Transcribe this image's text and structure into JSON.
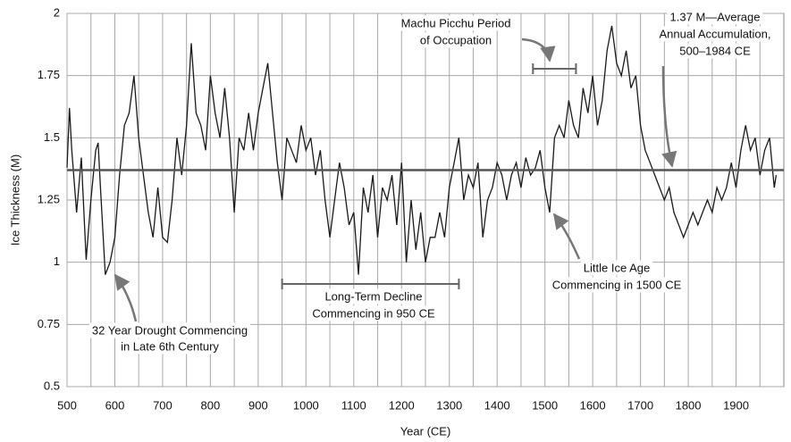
{
  "chart_data": {
    "type": "line",
    "x_label": "Year (CE)",
    "y_label": "Ice Thickness (M)",
    "xlim": [
      500,
      2000
    ],
    "ylim": [
      0.5,
      2
    ],
    "xticks": [
      500,
      600,
      700,
      800,
      900,
      1000,
      1100,
      1200,
      1300,
      1400,
      1500,
      1600,
      1700,
      1800,
      1900
    ],
    "xminorticks": [
      550,
      650,
      750,
      850,
      950,
      1050,
      1150,
      1250,
      1350,
      1450,
      1550,
      1650,
      1750,
      1850,
      1950
    ],
    "yticks": [
      0.5,
      0.75,
      1,
      1.25,
      1.5,
      1.75,
      2
    ],
    "grid": true,
    "reference_line": 1.37,
    "series": [
      {
        "color": "#1a1a1a",
        "x": [
          500,
          505,
          510,
          520,
          530,
          540,
          550,
          560,
          565,
          570,
          580,
          590,
          600,
          610,
          620,
          630,
          640,
          650,
          660,
          670,
          680,
          690,
          700,
          710,
          720,
          730,
          740,
          750,
          760,
          770,
          780,
          790,
          800,
          810,
          820,
          830,
          840,
          850,
          860,
          870,
          880,
          890,
          900,
          910,
          920,
          930,
          940,
          950,
          960,
          970,
          980,
          990,
          1000,
          1010,
          1020,
          1030,
          1040,
          1050,
          1060,
          1070,
          1080,
          1090,
          1100,
          1110,
          1120,
          1130,
          1140,
          1150,
          1160,
          1170,
          1180,
          1190,
          1200,
          1210,
          1220,
          1230,
          1240,
          1250,
          1260,
          1270,
          1280,
          1290,
          1300,
          1310,
          1320,
          1330,
          1340,
          1350,
          1360,
          1370,
          1380,
          1390,
          1400,
          1410,
          1420,
          1430,
          1440,
          1450,
          1460,
          1470,
          1480,
          1490,
          1500,
          1510,
          1520,
          1530,
          1540,
          1550,
          1560,
          1570,
          1580,
          1590,
          1600,
          1610,
          1620,
          1630,
          1640,
          1650,
          1660,
          1670,
          1680,
          1690,
          1700,
          1710,
          1720,
          1730,
          1740,
          1750,
          1760,
          1770,
          1780,
          1790,
          1800,
          1810,
          1820,
          1830,
          1840,
          1850,
          1860,
          1870,
          1880,
          1890,
          1900,
          1910,
          1920,
          1930,
          1940,
          1950,
          1960,
          1970,
          1980,
          1984
        ],
        "values": [
          1.38,
          1.62,
          1.45,
          1.2,
          1.42,
          1.01,
          1.25,
          1.45,
          1.48,
          1.3,
          0.95,
          1.0,
          1.1,
          1.35,
          1.55,
          1.6,
          1.75,
          1.5,
          1.35,
          1.2,
          1.1,
          1.3,
          1.1,
          1.08,
          1.25,
          1.5,
          1.35,
          1.55,
          1.88,
          1.6,
          1.55,
          1.45,
          1.75,
          1.6,
          1.5,
          1.7,
          1.5,
          1.2,
          1.5,
          1.45,
          1.6,
          1.45,
          1.6,
          1.7,
          1.8,
          1.6,
          1.4,
          1.25,
          1.5,
          1.45,
          1.4,
          1.55,
          1.45,
          1.5,
          1.35,
          1.45,
          1.25,
          1.1,
          1.25,
          1.4,
          1.3,
          1.15,
          1.2,
          0.95,
          1.3,
          1.2,
          1.35,
          1.1,
          1.3,
          1.25,
          1.35,
          1.15,
          1.4,
          1.0,
          1.25,
          1.05,
          1.2,
          1.0,
          1.1,
          1.1,
          1.2,
          1.1,
          1.3,
          1.4,
          1.5,
          1.25,
          1.35,
          1.3,
          1.4,
          1.1,
          1.25,
          1.3,
          1.4,
          1.35,
          1.25,
          1.35,
          1.4,
          1.3,
          1.42,
          1.35,
          1.38,
          1.45,
          1.3,
          1.2,
          1.5,
          1.55,
          1.5,
          1.65,
          1.55,
          1.5,
          1.7,
          1.6,
          1.75,
          1.55,
          1.65,
          1.85,
          1.95,
          1.8,
          1.75,
          1.85,
          1.7,
          1.75,
          1.55,
          1.45,
          1.4,
          1.35,
          1.3,
          1.25,
          1.3,
          1.2,
          1.15,
          1.1,
          1.15,
          1.2,
          1.15,
          1.2,
          1.25,
          1.2,
          1.3,
          1.25,
          1.3,
          1.4,
          1.3,
          1.45,
          1.55,
          1.45,
          1.5,
          1.35,
          1.45,
          1.5,
          1.3,
          1.35
        ]
      }
    ],
    "annotations": [
      {
        "text": [
          "32 Year Drought Commencing",
          "in Late 6th Century"
        ]
      },
      {
        "text": [
          "Long-Term Decline",
          "Commencing in 950 CE"
        ],
        "span": [
          950,
          1320
        ]
      },
      {
        "text": [
          "Little Ice Age",
          "Commencing in 1500 CE"
        ]
      },
      {
        "text": [
          "Machu Picchu Period",
          "of Occupation"
        ],
        "span": [
          1475,
          1565
        ]
      },
      {
        "text": [
          "1.37 M—Average",
          "Annual Accumulation,",
          "500–1984 CE"
        ]
      }
    ]
  }
}
